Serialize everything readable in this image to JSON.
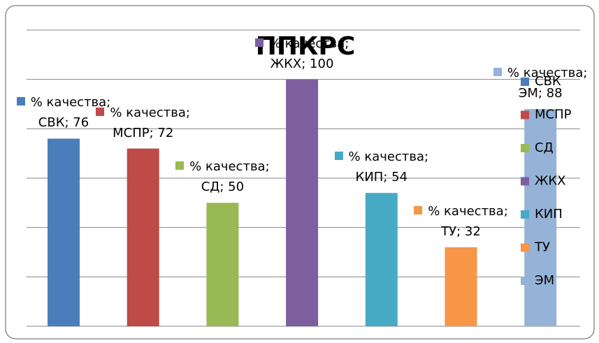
{
  "chart_data": {
    "type": "bar",
    "title": "ППКРС",
    "categories": [
      "% качества"
    ],
    "series": [
      {
        "name": "СВК",
        "color": "#4a7ebb",
        "values": [
          76
        ],
        "value_labels": [
          "% качества; СВК; 76"
        ]
      },
      {
        "name": "МСПР",
        "color": "#be4b48",
        "values": [
          72
        ],
        "value_labels": [
          "% качества; МСПР; 72"
        ]
      },
      {
        "name": "СД",
        "color": "#98b954",
        "values": [
          50
        ],
        "value_labels": [
          "% качества; СД; 50"
        ]
      },
      {
        "name": "ЖКХ",
        "color": "#7d5fa0",
        "values": [
          100
        ],
        "value_labels": [
          "% качества; ЖКХ; 100"
        ]
      },
      {
        "name": "КИП",
        "color": "#46aac5",
        "values": [
          54
        ],
        "value_labels": [
          "% качества; КИП; 54"
        ]
      },
      {
        "name": "ТУ",
        "color": "#f79646",
        "values": [
          32
        ],
        "value_labels": [
          "% качества; ТУ; 32"
        ]
      },
      {
        "name": "ЭМ",
        "color": "#95b3d7",
        "values": [
          88
        ],
        "value_labels": [
          "% качества; ЭМ; 88"
        ]
      }
    ],
    "ylim": [
      0,
      120
    ],
    "yticks": [
      0,
      20,
      40,
      60,
      80,
      100,
      120
    ],
    "grid": true,
    "legend": "right"
  }
}
